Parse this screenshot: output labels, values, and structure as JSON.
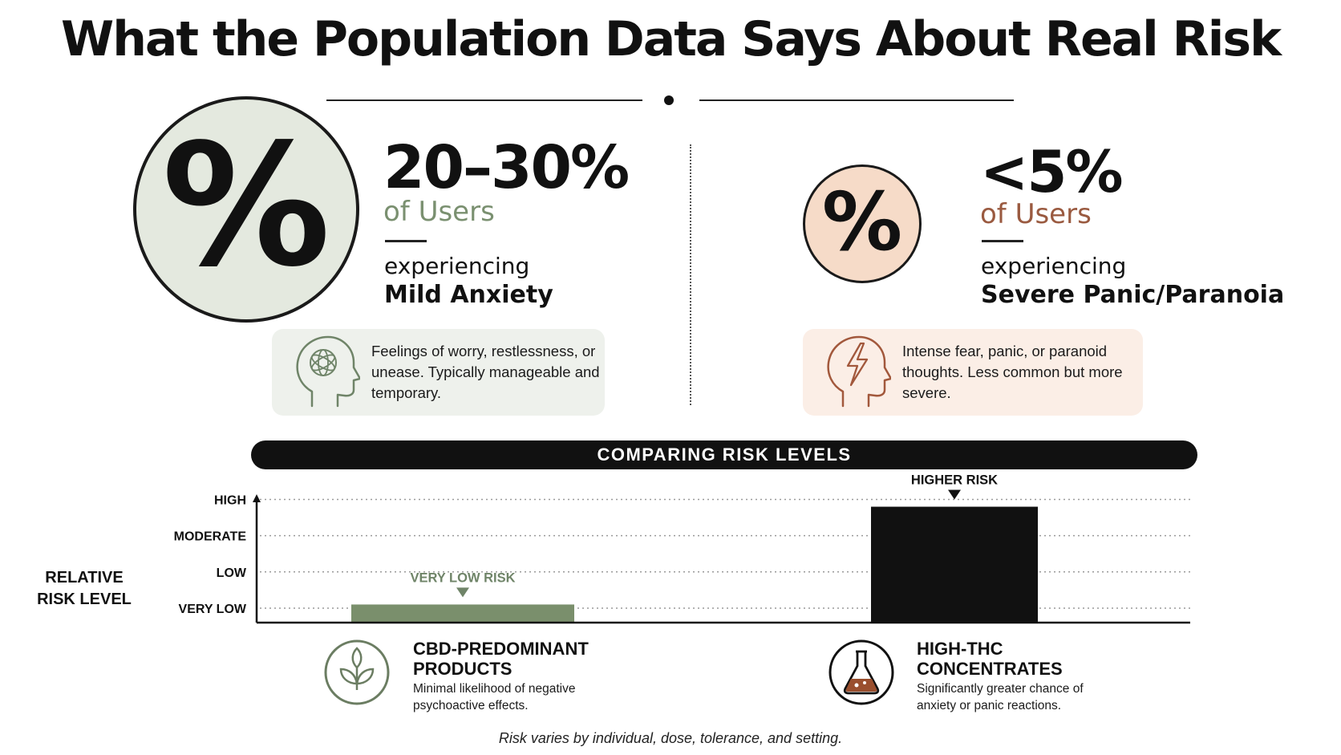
{
  "title": "What the Population Data Says About Real Risk",
  "stats": {
    "left": {
      "symbol": "%",
      "value": "20–30%",
      "of_users": "of Users",
      "experiencing": "experiencing",
      "condition": "Mild Anxiety",
      "icon": "head-brain-icon",
      "description": "Feelings of worry, restlessness, or unease. Typically manageable and temporary.",
      "circle_color": "#e4e9df",
      "accent_color": "#7a9070"
    },
    "right": {
      "symbol": "%",
      "value": "<5%",
      "of_users": "of Users",
      "experiencing": "experiencing",
      "condition": "Severe Panic/Paranoia",
      "icon": "head-lightning-icon",
      "description": "Intense fear, panic, or paranoid thoughts. Less common but more severe.",
      "circle_color": "#f6dbc8",
      "accent_color": "#9a5a40"
    }
  },
  "banner": "COMPARING RISK LEVELS",
  "chart_data": {
    "type": "bar",
    "title": "",
    "xlabel": "",
    "ylabel": "RELATIVE RISK LEVEL",
    "y_ticks": [
      "VERY LOW",
      "LOW",
      "MODERATE",
      "HIGH"
    ],
    "y_tick_values": [
      1,
      2,
      3,
      4
    ],
    "ylim": [
      0.6,
      4.1
    ],
    "grid": true,
    "categories": [
      "CBD-PREDOMINANT PRODUCTS",
      "HIGH-THC CONCENTRATES"
    ],
    "values": [
      1.1,
      3.8
    ],
    "bar_labels": [
      "VERY LOW RISK",
      "HIGHER RISK"
    ],
    "colors": [
      "#7a8f6c",
      "#111111"
    ]
  },
  "categories": [
    {
      "title_line1": "CBD-PREDOMINANT",
      "title_line2": "PRODUCTS",
      "description": "Minimal likelihood of negative psychoactive effects.",
      "icon": "leaf-icon"
    },
    {
      "title_line1": "HIGH-THC",
      "title_line2": "CONCENTRATES",
      "description": "Significantly greater chance of anxiety or panic reactions.",
      "icon": "flask-icon"
    }
  ],
  "footnote": "Risk varies by individual, dose, tolerance, and setting."
}
